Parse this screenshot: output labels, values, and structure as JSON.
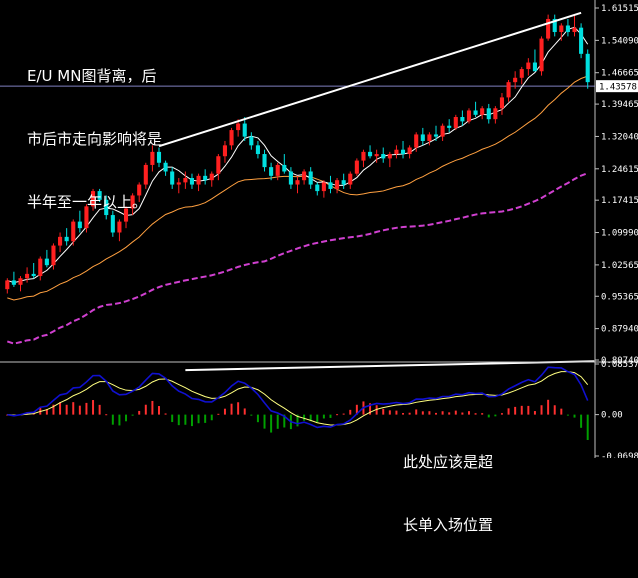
{
  "annotations": {
    "top_left": [
      "E/U MN图背离，后",
      "市后市走向影响将是",
      "半年至一年以上。"
    ],
    "bottom": [
      "此处应该是超",
      "长单入场位置"
    ]
  },
  "price_axis": {
    "ticks": [
      "1.61515",
      "1.54090",
      "1.46665",
      "1.39465",
      "1.32040",
      "1.24615",
      "1.17415",
      "1.09990",
      "1.02565",
      "0.95365",
      "0.87940",
      "0.80740"
    ],
    "current_price": "1.43578"
  },
  "indicator_axis": {
    "ticks": [
      "0.085373",
      "0.00",
      "-0.06980"
    ]
  },
  "colors": {
    "background": "#000000",
    "bull_candle": "#ff2020",
    "bear_candle": "#00e0e0",
    "ma_fast": "#ffffff",
    "ma_mid": "#ffa040",
    "ma_slow": "#d040d0",
    "macd_line": "#1010d0",
    "signal_line": "#ffff80",
    "hist_pos": "#ff3030",
    "hist_neg": "#00a000",
    "price_line": "#8080c0",
    "trendline": "#ffffff"
  },
  "chart_data": {
    "type": "candlestick",
    "timeframe": "MN",
    "ylim": [
      0.8074,
      1.61515
    ],
    "ohlc": [
      [
        0.97,
        0.995,
        0.96,
        0.99
      ],
      [
        0.99,
        1.01,
        0.975,
        0.98
      ],
      [
        0.98,
        1.0,
        0.965,
        0.995
      ],
      [
        0.995,
        1.02,
        0.985,
        1.005
      ],
      [
        1.005,
        1.03,
        0.995,
        1.0
      ],
      [
        1.0,
        1.045,
        0.99,
        1.04
      ],
      [
        1.04,
        1.06,
        1.02,
        1.025
      ],
      [
        1.025,
        1.075,
        1.015,
        1.07
      ],
      [
        1.07,
        1.1,
        1.055,
        1.09
      ],
      [
        1.09,
        1.11,
        1.07,
        1.08
      ],
      [
        1.08,
        1.13,
        1.07,
        1.125
      ],
      [
        1.125,
        1.15,
        1.1,
        1.11
      ],
      [
        1.11,
        1.165,
        1.1,
        1.16
      ],
      [
        1.16,
        1.2,
        1.15,
        1.195
      ],
      [
        1.195,
        1.2,
        1.17,
        1.175
      ],
      [
        1.175,
        1.185,
        1.13,
        1.14
      ],
      [
        1.14,
        1.15,
        1.09,
        1.1
      ],
      [
        1.1,
        1.13,
        1.08,
        1.125
      ],
      [
        1.125,
        1.16,
        1.11,
        1.155
      ],
      [
        1.155,
        1.19,
        1.14,
        1.185
      ],
      [
        1.185,
        1.215,
        1.17,
        1.21
      ],
      [
        1.21,
        1.26,
        1.2,
        1.255
      ],
      [
        1.255,
        1.3,
        1.24,
        1.285
      ],
      [
        1.285,
        1.295,
        1.25,
        1.26
      ],
      [
        1.26,
        1.265,
        1.23,
        1.24
      ],
      [
        1.24,
        1.25,
        1.2,
        1.21
      ],
      [
        1.21,
        1.225,
        1.19,
        1.215
      ],
      [
        1.215,
        1.24,
        1.2,
        1.225
      ],
      [
        1.225,
        1.235,
        1.2,
        1.21
      ],
      [
        1.21,
        1.235,
        1.195,
        1.23
      ],
      [
        1.23,
        1.245,
        1.21,
        1.22
      ],
      [
        1.22,
        1.24,
        1.205,
        1.235
      ],
      [
        1.235,
        1.28,
        1.22,
        1.275
      ],
      [
        1.275,
        1.31,
        1.26,
        1.3
      ],
      [
        1.3,
        1.34,
        1.29,
        1.335
      ],
      [
        1.335,
        1.36,
        1.32,
        1.35
      ],
      [
        1.35,
        1.365,
        1.31,
        1.32
      ],
      [
        1.32,
        1.33,
        1.29,
        1.3
      ],
      [
        1.3,
        1.31,
        1.27,
        1.28
      ],
      [
        1.28,
        1.29,
        1.24,
        1.25
      ],
      [
        1.25,
        1.26,
        1.22,
        1.23
      ],
      [
        1.23,
        1.26,
        1.22,
        1.255
      ],
      [
        1.255,
        1.28,
        1.235,
        1.24
      ],
      [
        1.24,
        1.25,
        1.2,
        1.21
      ],
      [
        1.21,
        1.23,
        1.19,
        1.22
      ],
      [
        1.22,
        1.245,
        1.21,
        1.24
      ],
      [
        1.24,
        1.25,
        1.2,
        1.21
      ],
      [
        1.21,
        1.215,
        1.185,
        1.195
      ],
      [
        1.195,
        1.22,
        1.18,
        1.215
      ],
      [
        1.215,
        1.23,
        1.19,
        1.2
      ],
      [
        1.2,
        1.225,
        1.19,
        1.22
      ],
      [
        1.22,
        1.235,
        1.2,
        1.21
      ],
      [
        1.21,
        1.24,
        1.2,
        1.235
      ],
      [
        1.235,
        1.27,
        1.23,
        1.265
      ],
      [
        1.265,
        1.29,
        1.25,
        1.285
      ],
      [
        1.285,
        1.3,
        1.27,
        1.275
      ],
      [
        1.275,
        1.29,
        1.26,
        1.28
      ],
      [
        1.28,
        1.295,
        1.26,
        1.27
      ],
      [
        1.27,
        1.285,
        1.25,
        1.28
      ],
      [
        1.28,
        1.3,
        1.27,
        1.29
      ],
      [
        1.29,
        1.31,
        1.27,
        1.28
      ],
      [
        1.28,
        1.3,
        1.27,
        1.295
      ],
      [
        1.295,
        1.33,
        1.285,
        1.325
      ],
      [
        1.325,
        1.34,
        1.3,
        1.31
      ],
      [
        1.31,
        1.33,
        1.3,
        1.325
      ],
      [
        1.325,
        1.345,
        1.31,
        1.32
      ],
      [
        1.32,
        1.35,
        1.31,
        1.345
      ],
      [
        1.345,
        1.36,
        1.33,
        1.34
      ],
      [
        1.34,
        1.37,
        1.335,
        1.365
      ],
      [
        1.365,
        1.38,
        1.345,
        1.355
      ],
      [
        1.355,
        1.385,
        1.35,
        1.38
      ],
      [
        1.38,
        1.4,
        1.365,
        1.37
      ],
      [
        1.37,
        1.39,
        1.36,
        1.385
      ],
      [
        1.385,
        1.395,
        1.35,
        1.36
      ],
      [
        1.36,
        1.39,
        1.35,
        1.385
      ],
      [
        1.385,
        1.42,
        1.37,
        1.41
      ],
      [
        1.41,
        1.45,
        1.4,
        1.445
      ],
      [
        1.445,
        1.47,
        1.43,
        1.455
      ],
      [
        1.455,
        1.48,
        1.44,
        1.475
      ],
      [
        1.475,
        1.5,
        1.46,
        1.49
      ],
      [
        1.49,
        1.52,
        1.47,
        1.47
      ],
      [
        1.47,
        1.55,
        1.46,
        1.545
      ],
      [
        1.545,
        1.6,
        1.54,
        1.59
      ],
      [
        1.59,
        1.6,
        1.55,
        1.56
      ],
      [
        1.56,
        1.58,
        1.54,
        1.575
      ],
      [
        1.575,
        1.59,
        1.55,
        1.56
      ],
      [
        1.56,
        1.6,
        1.55,
        1.57
      ],
      [
        1.57,
        1.58,
        1.5,
        1.51
      ],
      [
        1.51,
        1.52,
        1.43,
        1.445
      ]
    ],
    "trendlines": [
      {
        "name": "price-divergence",
        "points": [
          [
            23,
            1.298
          ],
          [
            87,
            1.604
          ]
        ]
      },
      {
        "name": "macd-divergence",
        "points": [
          [
            27,
            0.075
          ],
          [
            89,
            0.09
          ]
        ]
      }
    ],
    "price_line": 1.43578,
    "indicator_ylim": [
      -0.0698,
      0.085373
    ]
  }
}
